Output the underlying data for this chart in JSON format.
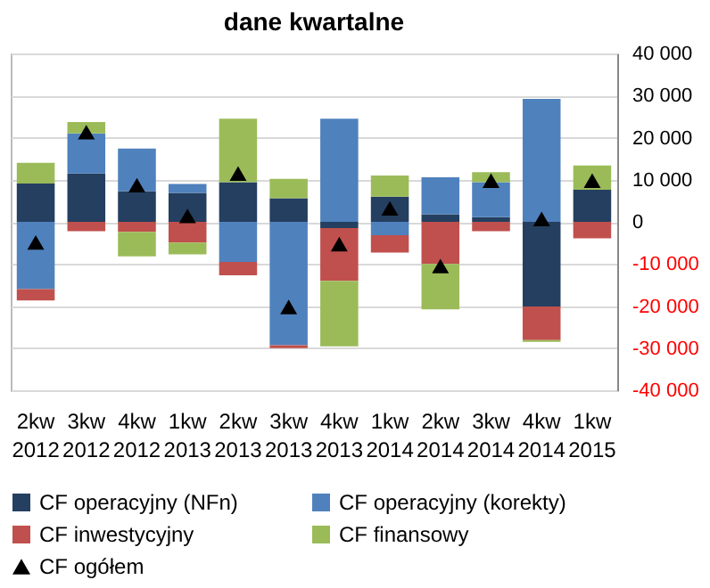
{
  "chart_data": {
    "type": "bar",
    "title": "dane kwartalne",
    "categories": [
      "2kw 2012",
      "3kw 2012",
      "4kw 2012",
      "1kw 2013",
      "2kw 2013",
      "3kw 2013",
      "4kw 2013",
      "1kw 2014",
      "2kw 2014",
      "3kw 2014",
      "4kw 2014",
      "1kw 2015"
    ],
    "stacked": true,
    "series": [
      {
        "name": "CF operacyjny (NFn)",
        "color": "#243f60",
        "values": [
          9100,
          11500,
          7300,
          6900,
          9400,
          5600,
          -1500,
          6000,
          1800,
          1100,
          -20100,
          7600
        ]
      },
      {
        "name": "CF operacyjny (korekty)",
        "color": "#4f81bd",
        "values": [
          -16000,
          9500,
          10100,
          2100,
          -9500,
          -29300,
          24500,
          -3200,
          8800,
          8300,
          29200,
          0
        ]
      },
      {
        "name": "CF inwestycyjny",
        "color": "#c0504d",
        "values": [
          -2700,
          -2200,
          -2400,
          -4900,
          -3200,
          -700,
          -12500,
          -4100,
          -10000,
          -2200,
          -8000,
          -3900
        ]
      },
      {
        "name": "CF finansowy",
        "color": "#9bbb59",
        "values": [
          4900,
          2700,
          -5800,
          -2800,
          15100,
          4600,
          -15600,
          5000,
          -10800,
          2400,
          -400,
          5800
        ]
      },
      {
        "name": "CF ogółem",
        "type": "scatter",
        "color": "#000000",
        "marker": "triangle",
        "x": [
          "2kw 2012",
          "3kw 2012",
          "4kw 2012",
          "1kw 2013",
          "2kw 2013",
          "3kw 2013",
          "4kw 2013",
          "1kw 2014",
          "2kw 2014",
          "3kw 2014",
          "4kw 2014",
          "1kw 2015"
        ],
        "values": [
          -4900,
          21300,
          8700,
          1400,
          11500,
          -20200,
          -5300,
          3200,
          -10500,
          9800,
          700,
          9800
        ]
      }
    ],
    "ylim": [
      -40000,
      40000
    ],
    "yticks": [
      {
        "value": -40000,
        "label": "-40 000"
      },
      {
        "value": -30000,
        "label": "-30 000"
      },
      {
        "value": -20000,
        "label": "-20 000"
      },
      {
        "value": -10000,
        "label": "-10 000"
      },
      0,
      {
        "value": 10000,
        "label": "10 000"
      },
      {
        "value": 20000,
        "label": "20 000"
      },
      {
        "value": 30000,
        "label": "30 000"
      },
      {
        "value": 40000,
        "label": "40 000"
      }
    ],
    "grid": "y",
    "legend": "bottom"
  }
}
